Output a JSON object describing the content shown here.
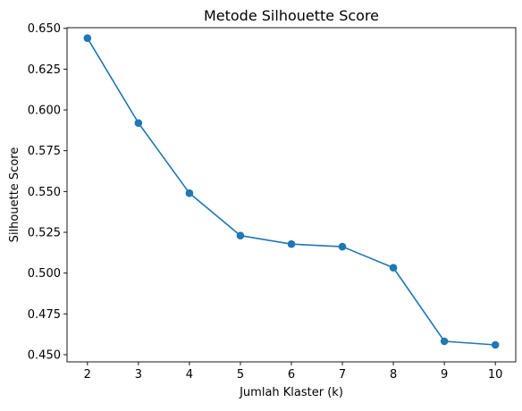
{
  "chart_data": {
    "type": "line",
    "title": "Metode Silhouette Score",
    "xlabel": "Jumlah Klaster (k)",
    "ylabel": "Silhouette Score",
    "x": [
      2,
      3,
      4,
      5,
      6,
      7,
      8,
      9,
      10
    ],
    "y": [
      0.644,
      0.592,
      0.549,
      0.523,
      0.5178,
      0.5162,
      0.5033,
      0.4582,
      0.456
    ],
    "xlim": [
      1.6,
      10.4
    ],
    "ylim": [
      0.4456,
      0.6504
    ],
    "x_ticks": [
      "2",
      "3",
      "4",
      "5",
      "6",
      "7",
      "8",
      "9",
      "10"
    ],
    "x_tick_values": [
      2,
      3,
      4,
      5,
      6,
      7,
      8,
      9,
      10
    ],
    "y_ticks": [
      "0.450",
      "0.475",
      "0.500",
      "0.525",
      "0.550",
      "0.575",
      "0.600",
      "0.625",
      "0.650"
    ],
    "y_tick_values": [
      0.45,
      0.475,
      0.5,
      0.525,
      0.55,
      0.575,
      0.6,
      0.625,
      0.65
    ],
    "marker": "circle",
    "color": "#1f77b4",
    "grid": false,
    "legend": "none"
  }
}
